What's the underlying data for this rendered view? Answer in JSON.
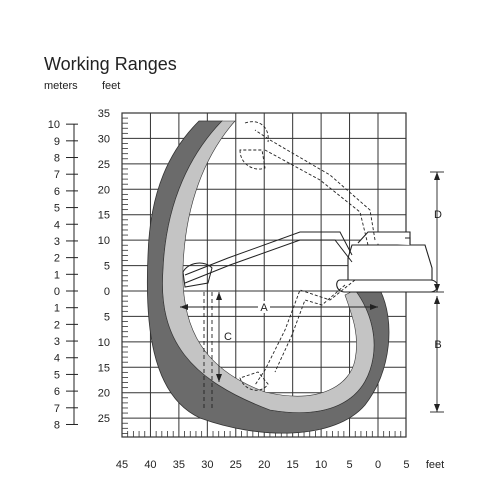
{
  "title": "Working Ranges",
  "units": {
    "meters": "meters",
    "feet": "feet"
  },
  "left_meter_ticks": [
    "10",
    "9",
    "8",
    "7",
    "6",
    "5",
    "4",
    "3",
    "2",
    "1",
    "0",
    "1",
    "2",
    "3",
    "4",
    "5",
    "6",
    "7",
    "8"
  ],
  "left_feet_ticks": [
    "35",
    "30",
    "25",
    "20",
    "15",
    "10",
    "5",
    "0",
    "5",
    "10",
    "15",
    "20",
    "25"
  ],
  "bottom_feet_ticks": [
    "45",
    "40",
    "35",
    "30",
    "25",
    "20",
    "15",
    "10",
    "5",
    "0",
    "5"
  ],
  "bottom_unit": "feet",
  "dimension_labels": {
    "A": "A",
    "B": "B",
    "C": "C",
    "D": "D"
  },
  "colors": {
    "outer_envelope": "#6b6b6b",
    "inner_envelope": "#c4c4c4",
    "grid": "#333333",
    "background": "#ffffff"
  }
}
